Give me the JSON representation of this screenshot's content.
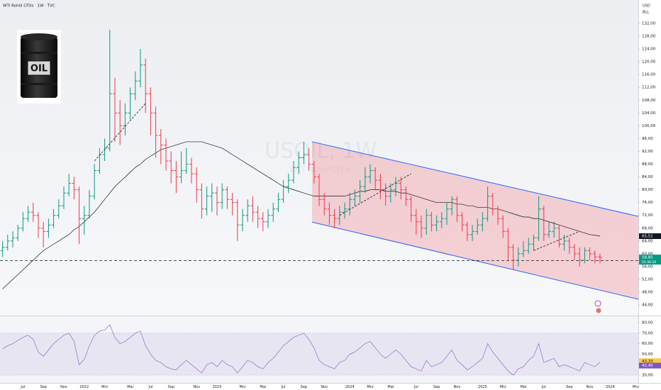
{
  "chart_data": {
    "type": "ohlc",
    "title": "WTI Rohöl CFDs · 1W · TVC",
    "watermark": "USOIL, 1W",
    "watermark_sub": "WTI Rohöl CFDs",
    "currency": "USD",
    "unit": "BLL",
    "logo_text": "OIL",
    "categories": [
      null,
      null,
      null,
      null,
      "Jul",
      null,
      null,
      null,
      "Sep",
      null,
      null,
      null,
      "Nov",
      null,
      null,
      null,
      "2022",
      null,
      null,
      null,
      "Mrz",
      null,
      null,
      null,
      null,
      "Mai",
      null,
      null,
      null,
      "Jul",
      null,
      null,
      null,
      "Sep",
      null,
      null,
      null,
      null,
      "Nov",
      null,
      null,
      null,
      "2023",
      null,
      null,
      null,
      null,
      "Mrz",
      null,
      null,
      null,
      "Mai",
      null,
      null,
      null,
      "Jul",
      null,
      null,
      null,
      "Sep",
      null,
      null,
      null,
      "Nov",
      null,
      null,
      null,
      null,
      "2024",
      null,
      null,
      null,
      "Mrz",
      null,
      null,
      null,
      "Mai",
      null,
      null,
      null,
      null,
      "Jul",
      null,
      null,
      null,
      "Sep",
      null,
      null,
      null,
      "Nov",
      null,
      null,
      null,
      null,
      "2025",
      null,
      null,
      null,
      "Mrz",
      null,
      null,
      null,
      "Mai",
      null,
      null,
      null,
      "Jul",
      null,
      null,
      null,
      null,
      "Sep",
      null,
      null,
      null,
      "Nov",
      null,
      null,
      null,
      "2026",
      null,
      null,
      null,
      null,
      "Mrz"
    ],
    "open": [
      61,
      62,
      64,
      65,
      68,
      71,
      73,
      72,
      68,
      67,
      69,
      72,
      75,
      79,
      82,
      80,
      71,
      72,
      78,
      86,
      91,
      93,
      110,
      104,
      100,
      104,
      110,
      114,
      119,
      110,
      104,
      97,
      94,
      89,
      86,
      84,
      86,
      88,
      85,
      80,
      74,
      78,
      79,
      76,
      80,
      77,
      76,
      69,
      72,
      75,
      73,
      71,
      70,
      72,
      74,
      77,
      81,
      83,
      87,
      90,
      91,
      88,
      84,
      77,
      74,
      72,
      71,
      73,
      74,
      77,
      78,
      81,
      84,
      86,
      83,
      80,
      78,
      80,
      82,
      80,
      77,
      72,
      70,
      68,
      72,
      69,
      70,
      71,
      74,
      77,
      72,
      69,
      66,
      67,
      69,
      71,
      78,
      74,
      71,
      67,
      62,
      58,
      60,
      61,
      63,
      65,
      74,
      66,
      67,
      68,
      63,
      64,
      62,
      60,
      58,
      61,
      60,
      59,
      null,
      null,
      null,
      null,
      null,
      null,
      null
    ],
    "high": [
      64,
      66,
      67,
      69,
      73,
      75,
      76,
      73,
      70,
      71,
      74,
      77,
      81,
      85,
      84,
      81,
      75,
      80,
      88,
      93,
      96,
      130,
      115,
      108,
      107,
      112,
      117,
      124,
      121,
      112,
      106,
      99,
      96,
      92,
      89,
      92,
      93,
      90,
      87,
      82,
      81,
      82,
      81,
      82,
      81,
      79,
      77,
      74,
      77,
      78,
      75,
      73,
      74,
      76,
      79,
      83,
      85,
      89,
      92,
      95,
      93,
      89,
      85,
      79,
      76,
      74,
      75,
      76,
      79,
      80,
      83,
      87,
      88,
      87,
      85,
      82,
      82,
      84,
      84,
      81,
      78,
      74,
      72,
      74,
      73,
      72,
      73,
      76,
      78,
      78,
      73,
      70,
      69,
      71,
      73,
      81,
      79,
      75,
      72,
      68,
      63,
      62,
      64,
      65,
      66,
      78,
      75,
      70,
      70,
      69,
      66,
      65,
      63,
      62,
      62,
      62,
      61,
      60,
      null,
      null,
      null,
      null,
      null,
      null,
      null
    ],
    "low": [
      59,
      61,
      62,
      64,
      67,
      70,
      70,
      65,
      62,
      65,
      68,
      71,
      74,
      78,
      77,
      63,
      66,
      71,
      77,
      85,
      89,
      92,
      95,
      94,
      97,
      102,
      108,
      112,
      104,
      97,
      90,
      88,
      86,
      82,
      79,
      82,
      85,
      82,
      76,
      71,
      72,
      73,
      72,
      74,
      74,
      72,
      64,
      67,
      70,
      70,
      68,
      67,
      68,
      70,
      73,
      76,
      79,
      82,
      85,
      88,
      86,
      82,
      75,
      72,
      69,
      68,
      69,
      71,
      72,
      75,
      76,
      79,
      82,
      80,
      77,
      75,
      76,
      78,
      77,
      75,
      70,
      66,
      65,
      66,
      67,
      67,
      68,
      69,
      72,
      70,
      67,
      64,
      64,
      66,
      67,
      70,
      72,
      69,
      65,
      58,
      55,
      56,
      59,
      60,
      61,
      64,
      64,
      65,
      65,
      62,
      61,
      60,
      58,
      56,
      57,
      58,
      57,
      57,
      null,
      null,
      null,
      null,
      null,
      null,
      null
    ],
    "close": [
      62,
      64,
      65,
      68,
      71,
      73,
      72,
      68,
      67,
      69,
      72,
      75,
      79,
      82,
      80,
      71,
      72,
      78,
      86,
      91,
      93,
      110,
      104,
      100,
      104,
      110,
      114,
      119,
      110,
      104,
      97,
      94,
      89,
      86,
      84,
      86,
      88,
      85,
      80,
      74,
      78,
      79,
      76,
      80,
      77,
      76,
      69,
      72,
      75,
      73,
      71,
      70,
      72,
      74,
      77,
      81,
      83,
      87,
      90,
      91,
      88,
      84,
      77,
      74,
      72,
      71,
      73,
      74,
      77,
      78,
      81,
      84,
      86,
      83,
      80,
      78,
      80,
      82,
      80,
      77,
      72,
      70,
      68,
      72,
      69,
      70,
      71,
      74,
      77,
      72,
      69,
      66,
      67,
      69,
      71,
      78,
      74,
      71,
      67,
      62,
      58,
      60,
      61,
      63,
      65,
      74,
      66,
      67,
      68,
      63,
      64,
      62,
      60,
      58,
      61,
      60,
      59,
      58.85,
      null,
      null,
      null,
      null,
      null,
      null,
      null
    ],
    "up_color": "#089981",
    "down_color": "#f23645",
    "ma": {
      "color": "#131722",
      "values": [
        49,
        50.5,
        52,
        53.5,
        55,
        56.5,
        58,
        59.5,
        61,
        62,
        63,
        64,
        65,
        66,
        67.5,
        68.5,
        70,
        71.5,
        73,
        75,
        77,
        79,
        81,
        82.5,
        84,
        85.5,
        87,
        88,
        89.5,
        90.5,
        91.5,
        92.5,
        93,
        93.5,
        94,
        94.5,
        95,
        95,
        95,
        95,
        94.5,
        94,
        93.5,
        93,
        92,
        91,
        90,
        89,
        88,
        87,
        86,
        85,
        84,
        83,
        82,
        81,
        80.5,
        80,
        79.5,
        79,
        78.5,
        78,
        78,
        78,
        78,
        78,
        78,
        78,
        78.5,
        79,
        79.5,
        79.5,
        80,
        80,
        80,
        79.5,
        79.5,
        79.5,
        79,
        79,
        78.5,
        78,
        77.5,
        77,
        76.5,
        76,
        76,
        76,
        76,
        75.5,
        75.5,
        75,
        75,
        74.5,
        74.5,
        74.5,
        74,
        74,
        73.5,
        73,
        72.5,
        72,
        71.5,
        71.5,
        71,
        71,
        70.5,
        70,
        69.5,
        69,
        68.5,
        68,
        67.5,
        67,
        66.5,
        66,
        65.8,
        65.51,
        null,
        null,
        null,
        null,
        null,
        null,
        null
      ]
    },
    "ylim": [
      40.7,
      139.3
    ],
    "yticks": [
      {
        "value": 44,
        "label": "44,00"
      },
      {
        "value": 48,
        "label": "48,00"
      },
      {
        "value": 52,
        "label": "52,00"
      },
      {
        "value": 56,
        "label": "56,00"
      },
      {
        "value": 60,
        "label": "60,00"
      },
      {
        "value": 64,
        "label": "64,00"
      },
      {
        "value": 68,
        "label": "68,00"
      },
      {
        "value": 72,
        "label": "72,00"
      },
      {
        "value": 76,
        "label": "76,00"
      },
      {
        "value": 80,
        "label": "80,00"
      },
      {
        "value": 84,
        "label": "84,00"
      },
      {
        "value": 88,
        "label": "88,00"
      },
      {
        "value": 92,
        "label": "92,00"
      },
      {
        "value": 96,
        "label": "96,00"
      },
      {
        "value": 100,
        "label": "100,00"
      },
      {
        "value": 104,
        "label": "104,00"
      },
      {
        "value": 108,
        "label": "108,00"
      },
      {
        "value": 112,
        "label": "112,00"
      },
      {
        "value": 116,
        "label": "116,00"
      },
      {
        "value": 120,
        "label": "120,00"
      },
      {
        "value": 124,
        "label": "124,00"
      },
      {
        "value": 128,
        "label": "128,00"
      },
      {
        "value": 132,
        "label": "132,00"
      }
    ],
    "channel": {
      "x": [
        60.6,
        124.5
      ],
      "upper": [
        95,
        71.7
      ],
      "lower": [
        69.9,
        45.8
      ],
      "color": "#2962ff",
      "fill": "rgba(242,54,69,0.2)"
    },
    "hline": 57.9,
    "trendlines": [
      [
        18,
        89,
        28,
        107
      ],
      [
        66,
        72,
        80,
        85
      ],
      [
        104,
        61,
        113,
        67
      ]
    ],
    "price_label": {
      "value": 58.85,
      "label": "58,85"
    },
    "countdown": "05:46:26",
    "ma_label": {
      "value": 65.51,
      "label": "65,51"
    },
    "rsi": {
      "ylim": [
        22.6,
        85.4
      ],
      "yticks": [
        {
          "value": 30,
          "label": "30,00"
        },
        {
          "value": 40,
          "label": "40,00"
        },
        {
          "value": 50,
          "label": "50,00"
        },
        {
          "value": 60,
          "label": "60,00"
        },
        {
          "value": 70,
          "label": "70,00"
        },
        {
          "value": 80,
          "label": "80,00"
        }
      ],
      "band": [
        30,
        70
      ],
      "color": "#7e57c2",
      "values": [
        55,
        58,
        60,
        63,
        66,
        68,
        64,
        52,
        48,
        54,
        60,
        64,
        68,
        70,
        62,
        40,
        45,
        58,
        68,
        72,
        73,
        78,
        66,
        60,
        62,
        66,
        70,
        72,
        58,
        50,
        44,
        42,
        38,
        36,
        35,
        40,
        44,
        40,
        36,
        32,
        40,
        42,
        38,
        44,
        40,
        38,
        32,
        38,
        44,
        42,
        38,
        36,
        42,
        46,
        52,
        58,
        62,
        66,
        68,
        70,
        64,
        56,
        44,
        40,
        38,
        36,
        42,
        44,
        50,
        52,
        56,
        60,
        62,
        56,
        50,
        46,
        50,
        54,
        50,
        44,
        38,
        36,
        34,
        44,
        38,
        40,
        42,
        48,
        54,
        44,
        40,
        35,
        38,
        42,
        46,
        60,
        52,
        46,
        40,
        34,
        30,
        36,
        38,
        44,
        48,
        60,
        42,
        44,
        46,
        38,
        40,
        38,
        36,
        34,
        42,
        40,
        38,
        42.45,
        null,
        null,
        null,
        null,
        null,
        null,
        null
      ],
      "value_label": {
        "value": 42.45,
        "label": "42,45"
      },
      "ma_label": {
        "value": 43.33,
        "label": "43,33"
      },
      "ma_color": "#f7c948"
    }
  }
}
